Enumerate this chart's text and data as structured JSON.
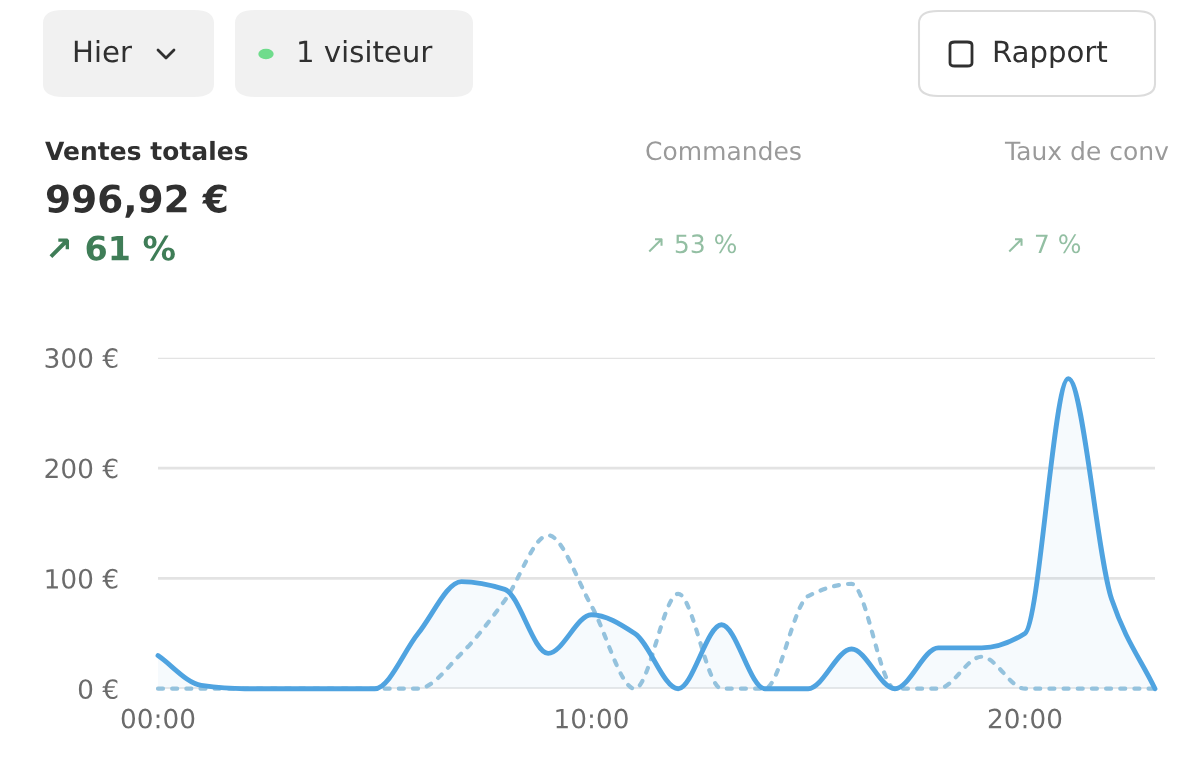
{
  "chart_data": {
    "type": "line",
    "annotations": [
      "Hier",
      "1 visiteur",
      "Rapport",
      "Ventes totales",
      "996,92 €",
      "↗ 61 %",
      "Commandes",
      "↗ 53 %",
      "Taux de conv",
      "↗ 7 %"
    ],
    "x": [
      0,
      1,
      2,
      3,
      4,
      5,
      6,
      7,
      8,
      9,
      10,
      11,
      12,
      13,
      14,
      15,
      16,
      17,
      18,
      19,
      20,
      21,
      22,
      23
    ],
    "series": [
      {
        "type": "area",
        "color": "#4fa3e0",
        "line_style": "solid",
        "values": [
          30,
          3,
          0,
          0,
          0,
          0,
          50,
          97,
          90,
          32,
          67,
          50,
          0,
          58,
          0,
          0,
          36,
          0,
          37,
          37,
          50,
          281,
          81,
          0
        ]
      },
      {
        "color": "#94c2dd",
        "line_style": "dashed",
        "values": [
          0,
          0,
          0,
          0,
          0,
          0,
          0,
          32,
          80,
          139,
          75,
          0,
          86,
          0,
          0,
          84,
          95,
          0,
          0,
          29,
          0,
          0,
          0,
          0
        ]
      }
    ],
    "xlim": [
      0,
      23
    ],
    "xticks": [
      {
        "value": 0,
        "label": "00:00"
      },
      {
        "value": 10,
        "label": "10:00"
      },
      {
        "value": 20,
        "label": "20:00"
      }
    ],
    "ylim": [
      0,
      300
    ],
    "yticks": [
      {
        "value": 0,
        "label": "0 €"
      },
      {
        "value": 100,
        "label": "100 €"
      },
      {
        "value": 200,
        "label": "200 €"
      },
      {
        "value": 300,
        "label": "300 €"
      }
    ],
    "grid": "y",
    "marker": "none"
  }
}
